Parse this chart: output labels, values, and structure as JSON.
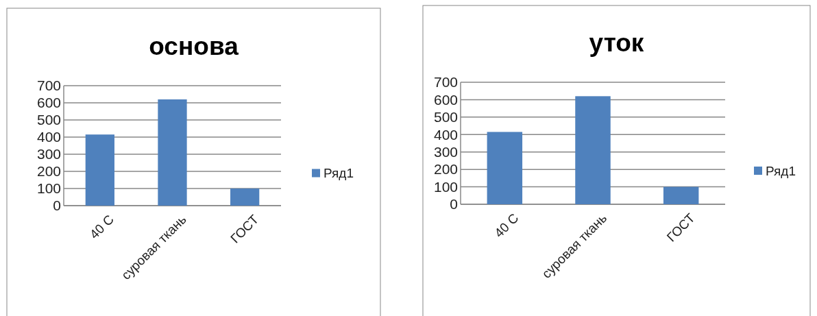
{
  "chart_data": [
    {
      "type": "bar",
      "title": "основа",
      "categories": [
        "40 С",
        "суровая ткань",
        "ГОСТ"
      ],
      "series": [
        {
          "name": "Ряд1",
          "color": "#4f81bd",
          "values": [
            415,
            620,
            100
          ]
        }
      ],
      "ylim": [
        0,
        700
      ],
      "yticks": [
        0,
        100,
        200,
        300,
        400,
        500,
        600,
        700
      ],
      "grid": "y",
      "legend": "right"
    },
    {
      "type": "bar",
      "title": "уток",
      "categories": [
        "40 С",
        "суровая ткань",
        "ГОСТ"
      ],
      "series": [
        {
          "name": "Ряд1",
          "color": "#4f81bd",
          "values": [
            415,
            620,
            100
          ]
        }
      ],
      "ylim": [
        0,
        700
      ],
      "yticks": [
        0,
        100,
        200,
        300,
        400,
        500,
        600,
        700
      ],
      "grid": "y",
      "legend": "right"
    }
  ]
}
